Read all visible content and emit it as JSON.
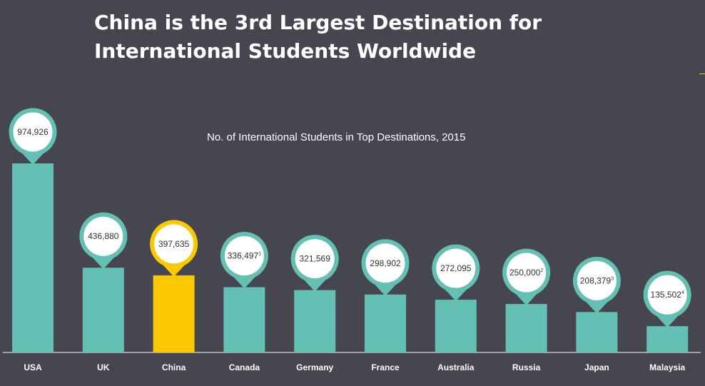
{
  "slide": {
    "title_line1": "China is the 3rd Largest Destination for",
    "title_line2": "International Students Worldwide",
    "accent_color": "#f2c300"
  },
  "chart_data": {
    "type": "bar",
    "title": "No. of International Students in Top Destinations, 2015",
    "xlabel": "",
    "ylabel": "",
    "categories": [
      "USA",
      "UK",
      "China",
      "Canada",
      "Germany",
      "France",
      "Australia",
      "Russia",
      "Japan",
      "Malaysia"
    ],
    "values": [
      974926,
      436880,
      397635,
      336497,
      321569,
      298902,
      272095,
      250000,
      208379,
      135502
    ],
    "value_labels": [
      "974,926",
      "436,880",
      "397,635",
      "336,497",
      "321,569",
      "298,902",
      "272,095",
      "250,000",
      "208,379",
      "135,502"
    ],
    "footnote_marks": [
      "",
      "",
      "",
      "1",
      "",
      "",
      "",
      "2",
      "3",
      "4"
    ],
    "highlight_category": "China",
    "ylim": [
      0,
      974926
    ],
    "grid": false,
    "legend": "none",
    "colors": {
      "bar": "#64c0b4",
      "highlight": "#fbc901",
      "badge_fill": "#ffffff",
      "label_text": "#ffffff",
      "value_text": "#333333",
      "axis": "#bfbfbf"
    }
  }
}
